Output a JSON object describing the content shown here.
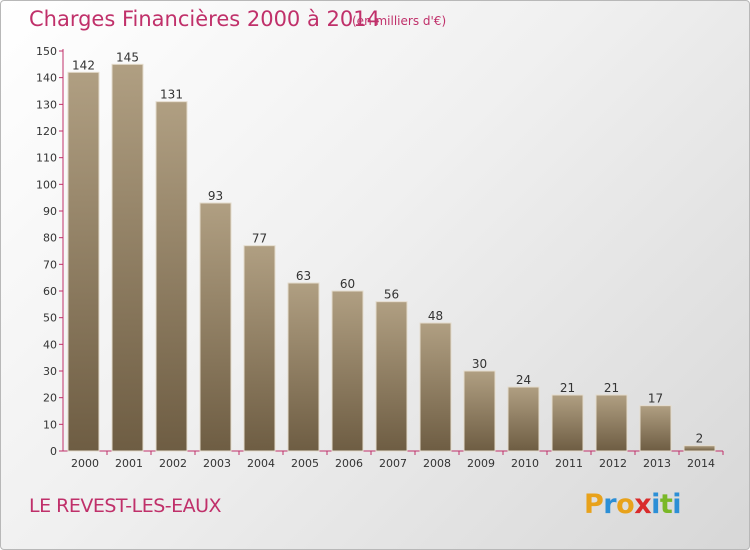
{
  "title": "Charges Financières 2000 à 2014",
  "unit_note": "(en milliers d'€)",
  "commune": "LE REVEST-LES-EAUX",
  "logo": {
    "text": "Proxiti",
    "letter_colors": [
      "#e8a21b",
      "#2c8fd6",
      "#e8a21b",
      "#d92b2b",
      "#2c8fd6",
      "#7ab827",
      "#2c8fd6"
    ]
  },
  "colors": {
    "title": "#c0306a",
    "bar_dark": "#6f5f45",
    "bar_light": "#ad9c7f",
    "axis": "#c0306a"
  },
  "chart_data": {
    "type": "bar",
    "categories": [
      "2000",
      "2001",
      "2002",
      "2003",
      "2004",
      "2005",
      "2006",
      "2007",
      "2008",
      "2009",
      "2010",
      "2011",
      "2012",
      "2013",
      "2014"
    ],
    "values": [
      142,
      145,
      131,
      93,
      77,
      63,
      60,
      56,
      48,
      30,
      24,
      21,
      21,
      17,
      2
    ],
    "ylim": [
      0,
      150
    ],
    "yticks": [
      0,
      10,
      20,
      30,
      40,
      50,
      60,
      70,
      80,
      90,
      100,
      110,
      120,
      130,
      140,
      150
    ],
    "grid": false,
    "data_labels": true
  }
}
